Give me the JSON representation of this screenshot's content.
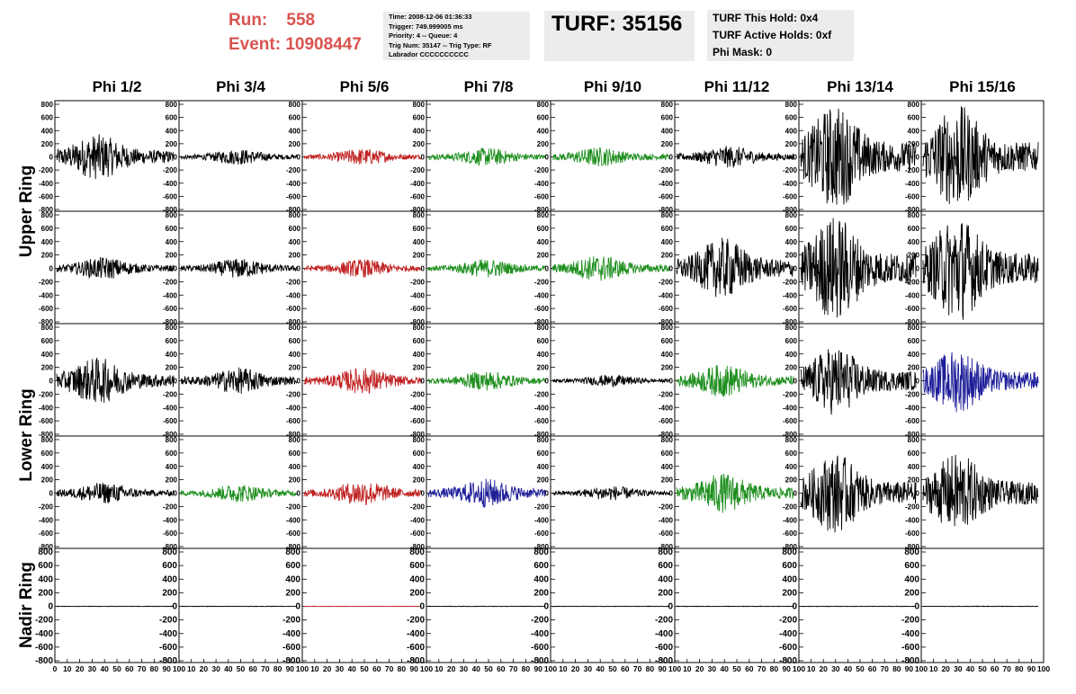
{
  "header": {
    "run_label": "Run:",
    "run_value": "558",
    "event_label": "Event:",
    "event_value": "10908447",
    "trigger_info": [
      "Time: 2008-12-06 01:36:33",
      "Trigger: 749.999005 ms",
      "Priority: 4 -- Queue: 4",
      "Trig Num: 35147 -- Trig Type: RF",
      "Labrador CCCCCCCCCC"
    ],
    "turf_title": "TURF: 35156",
    "turf_info": [
      "TURF This Hold: 0x4",
      "TURF Active Holds: 0xf",
      "Phi Mask: 0"
    ]
  },
  "colors": {
    "black": "#000000",
    "red": "#c02020",
    "green": "#1f8f1f",
    "blue": "#1f1f9a",
    "header_red": "#d9534f",
    "box_bg": "#ececec"
  },
  "chart_data": {
    "type": "line",
    "columns": [
      "Phi 1/2",
      "Phi 3/4",
      "Phi 5/6",
      "Phi 7/8",
      "Phi 9/10",
      "Phi 11/12",
      "Phi 13/14",
      "Phi 15/16"
    ],
    "rows": [
      "Upper Ring",
      "Upper Ring",
      "Lower Ring",
      "Lower Ring",
      "Nadir Ring"
    ],
    "ring_labels": [
      "Upper Ring",
      "Lower Ring",
      "Nadir Ring"
    ],
    "ylim": [
      -800,
      800
    ],
    "yticks": [
      800,
      600,
      400,
      200,
      0,
      -200,
      -400,
      -600,
      -800
    ],
    "xlim": [
      0,
      100
    ],
    "xticks": [
      0,
      10,
      20,
      30,
      40,
      50,
      60,
      70,
      80,
      90,
      100
    ],
    "grid": false,
    "trace_colors": [
      [
        "black",
        "black",
        "red",
        "green",
        "green",
        "black",
        "black",
        "black"
      ],
      [
        "black",
        "black",
        "red",
        "green",
        "green",
        "black",
        "black",
        "black"
      ],
      [
        "black",
        "black",
        "red",
        "green",
        "black",
        "green",
        "black",
        "blue"
      ],
      [
        "black",
        "green",
        "red",
        "blue",
        "black",
        "green",
        "black",
        "black"
      ],
      [
        "black",
        "black",
        "red",
        "black",
        "black",
        "black",
        "black",
        "black"
      ]
    ],
    "peak_amplitude": [
      [
        350,
        120,
        130,
        140,
        150,
        170,
        800,
        800
      ],
      [
        170,
        150,
        140,
        140,
        200,
        460,
        800,
        800
      ],
      [
        350,
        200,
        200,
        150,
        90,
        250,
        520,
        480
      ],
      [
        160,
        140,
        190,
        220,
        110,
        300,
        600,
        600
      ],
      [
        4,
        4,
        4,
        4,
        4,
        4,
        4,
        4
      ]
    ],
    "peak_position": [
      [
        35,
        50,
        50,
        50,
        40,
        45,
        30,
        30
      ],
      [
        40,
        50,
        50,
        50,
        40,
        40,
        30,
        30
      ],
      [
        35,
        50,
        50,
        50,
        50,
        40,
        30,
        30
      ],
      [
        40,
        50,
        50,
        50,
        50,
        40,
        30,
        30
      ],
      [
        50,
        50,
        50,
        50,
        50,
        50,
        50,
        50
      ]
    ],
    "samples_per_trace": 260
  }
}
